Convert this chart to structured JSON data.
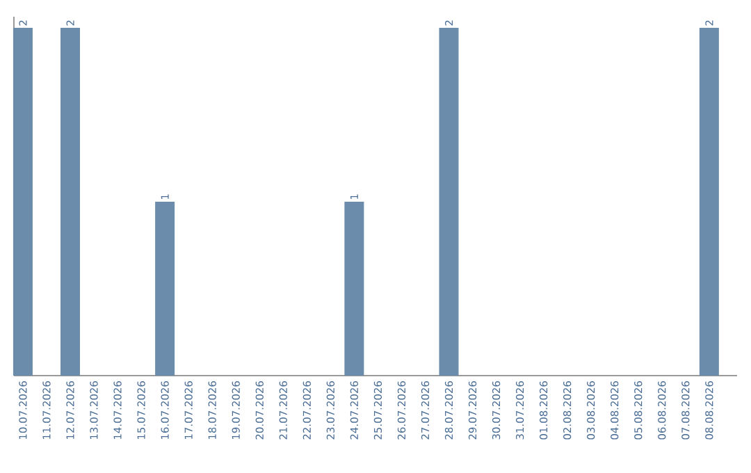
{
  "chart_data": {
    "type": "bar",
    "categories": [
      "10.07.2026",
      "11.07.2026",
      "12.07.2026",
      "13.07.2026",
      "14.07.2026",
      "15.07.2026",
      "16.07.2026",
      "17.07.2026",
      "18.07.2026",
      "19.07.2026",
      "20.07.2026",
      "21.07.2026",
      "22.07.2026",
      "23.07.2026",
      "24.07.2026",
      "25.07.2026",
      "26.07.2026",
      "27.07.2026",
      "28.07.2026",
      "29.07.2026",
      "30.07.2026",
      "31.07.2026",
      "01.08.2026",
      "02.08.2026",
      "03.08.2026",
      "04.08.2026",
      "05.08.2026",
      "06.08.2026",
      "07.08.2026",
      "08.08.2026"
    ],
    "values": [
      2,
      0,
      2,
      0,
      0,
      0,
      1,
      0,
      0,
      0,
      0,
      0,
      0,
      0,
      1,
      0,
      0,
      0,
      2,
      0,
      0,
      0,
      0,
      0,
      0,
      0,
      0,
      0,
      0,
      2
    ],
    "value_labels": [
      "2",
      null,
      "2",
      null,
      null,
      null,
      "1",
      null,
      null,
      null,
      null,
      null,
      null,
      null,
      "1",
      null,
      null,
      null,
      "2",
      null,
      null,
      null,
      null,
      null,
      null,
      null,
      null,
      null,
      null,
      "2"
    ],
    "color": "#6b8cab"
  }
}
